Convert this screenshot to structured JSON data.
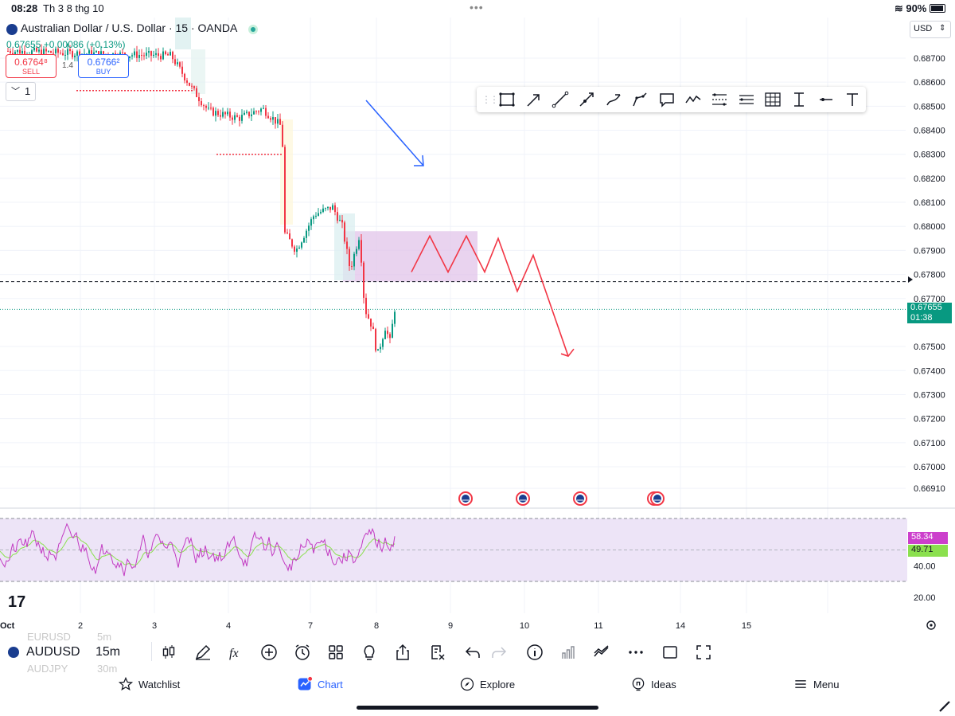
{
  "status_bar": {
    "time": "08:28",
    "date": "Th 3 8 thg 10",
    "battery": "90%"
  },
  "chart_header": {
    "title": "Australian Dollar / U.S. Dollar · 15 · OANDA",
    "price_change": "0.67655 +0.00086 (+0.13%)",
    "sell_price": "0.6764⁸",
    "sell_label": "SELL",
    "buy_price": "0.6766²",
    "buy_label": "BUY",
    "spread": "1.4",
    "interval_count": "1",
    "currency": "USD"
  },
  "colors": {
    "up_candle": "#089981",
    "down_candle": "#f23645",
    "zone_fill": "#e1c4ea",
    "rsi_line": "#c23ac2",
    "rsi_ma": "#8be04e",
    "drawing_red": "#f23645",
    "drawing_blue": "#2962ff"
  },
  "price_axis": {
    "labels": [
      "0.68700",
      "0.68600",
      "0.68500",
      "0.68400",
      "0.68300",
      "0.68200",
      "0.68100",
      "0.68000",
      "0.67900",
      "0.67800",
      "0.67700",
      "0.67500",
      "0.67400",
      "0.67300",
      "0.67200",
      "0.67100",
      "0.67000",
      "0.66910"
    ],
    "last_price": "0.67655",
    "countdown": "01:38"
  },
  "rsi_axis": {
    "labels": [
      "40.00",
      "20.00"
    ],
    "rsi_value": "58.34",
    "rsi_ma_value": "49.71"
  },
  "time_axis": {
    "labels": [
      "Oct",
      "2",
      "3",
      "4",
      "7",
      "8",
      "9",
      "10",
      "11",
      "14",
      "15"
    ]
  },
  "chart_data": {
    "type": "line",
    "symbol": "AUDUSD",
    "interval": "15",
    "ylim": [
      0.6691,
      0.6878
    ],
    "x": [
      "2",
      "3",
      "4",
      "7",
      "8"
    ],
    "series": [
      {
        "values": [
          0.6866,
          0.6848,
          0.6842,
          0.6795,
          0.6766
        ]
      }
    ],
    "horizontal_line": 0.6777,
    "last_price": 0.67655,
    "zone": [
      0.6777,
      0.6798
    ],
    "rsi": {
      "ylim": [
        10,
        80
      ],
      "value": 58.34,
      "ma": 49.71
    }
  },
  "bottom_toolbar": {
    "symbol": "AUDUSD",
    "interval": "15m",
    "prev_symbol": "EURUSD",
    "prev_interval": "5m",
    "next_symbol": "AUDJPY",
    "next_interval": "30m"
  },
  "nav": {
    "watchlist": "Watchlist",
    "chart": "Chart",
    "explore": "Explore",
    "ideas": "Ideas",
    "menu": "Menu"
  }
}
